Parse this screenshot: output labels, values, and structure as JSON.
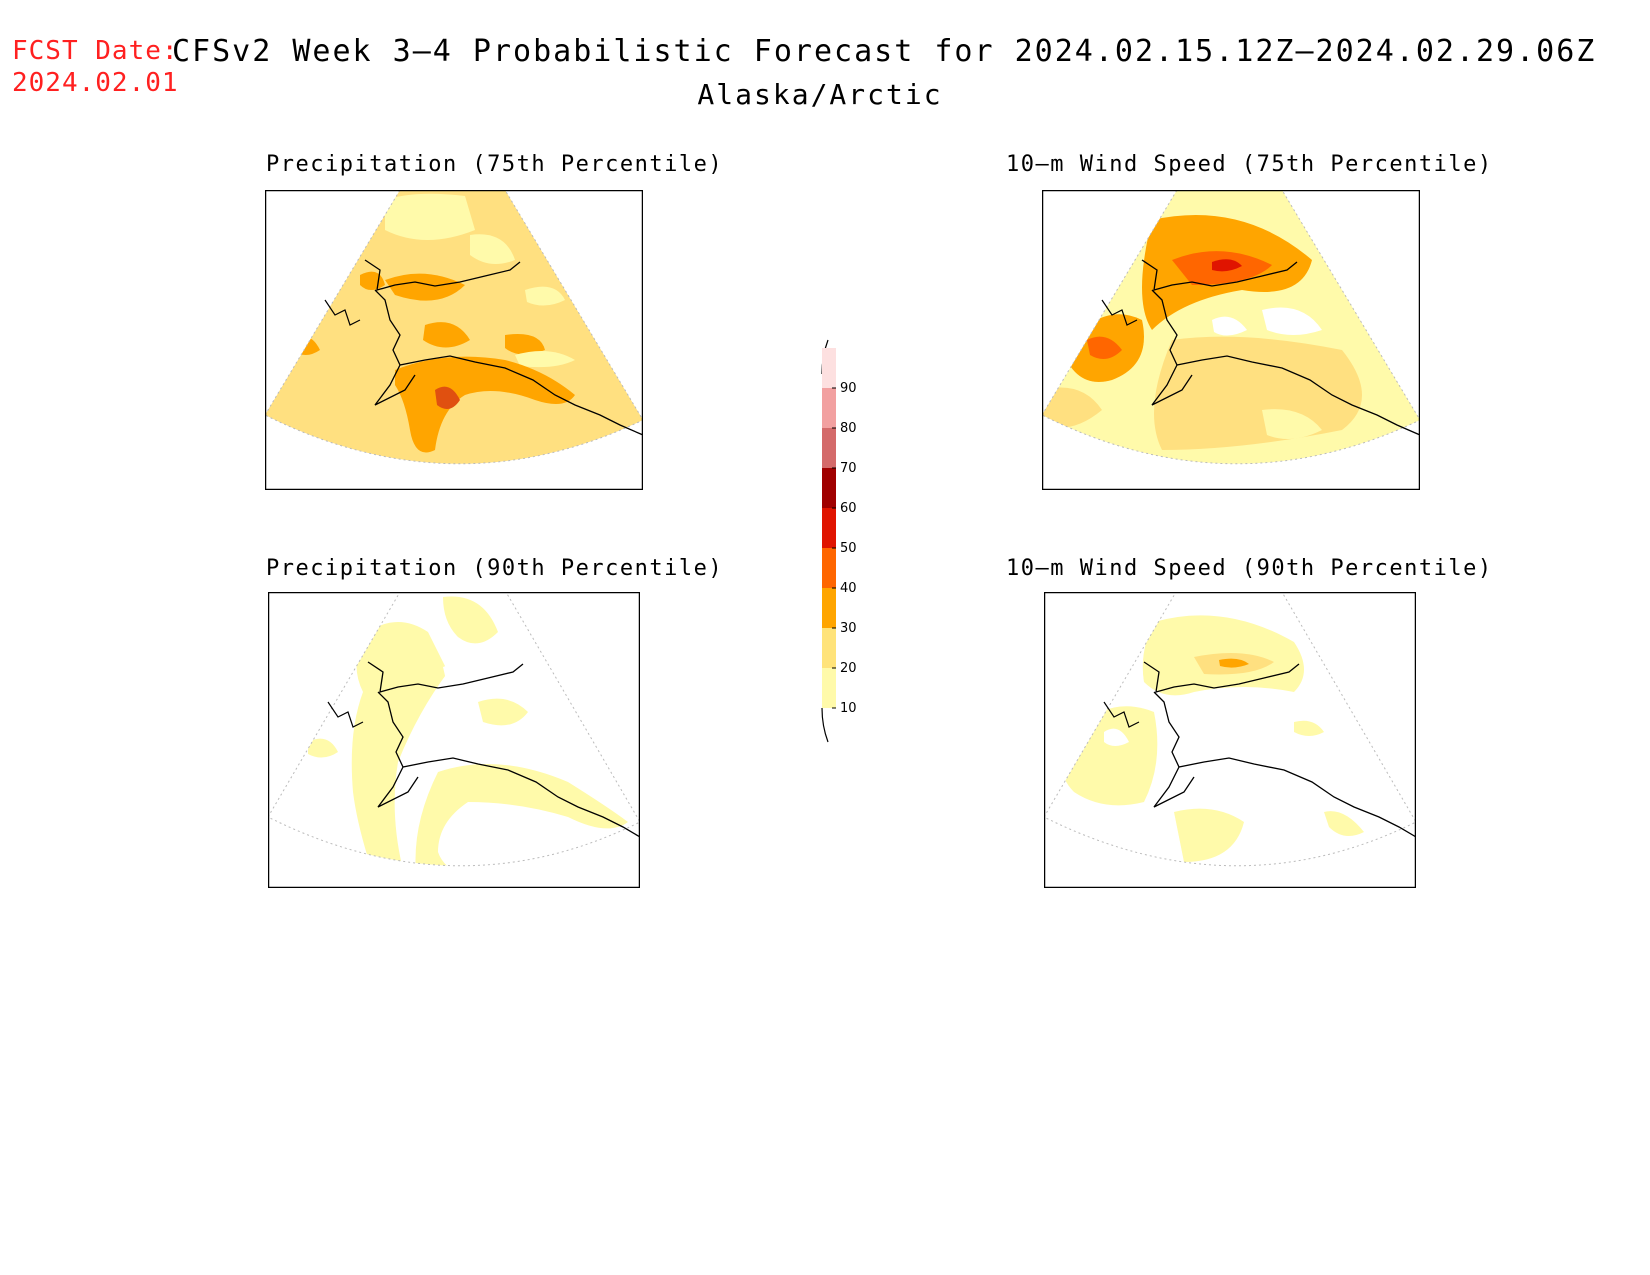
{
  "header": {
    "fcst_label": "FCST Date:",
    "fcst_date": "2024.02.01",
    "title": "CFSv2 Week 3–4 Probabilistic Forecast for 2024.02.15.12Z–2024.02.29.06Z",
    "subtitle": "Alaska/Arctic"
  },
  "panels": [
    {
      "id": "precip75",
      "title": "Precipitation (75th Percentile)"
    },
    {
      "id": "wind75",
      "title": "10–m Wind Speed (75th Percentile)"
    },
    {
      "id": "precip90",
      "title": "Precipitation (90th Percentile)"
    },
    {
      "id": "wind90",
      "title": "10–m Wind Speed (90th Percentile)"
    }
  ],
  "colorbar": {
    "levels": [
      "10",
      "20",
      "30",
      "40",
      "50",
      "60",
      "70",
      "80",
      "90"
    ],
    "colors": [
      "#fffaaa",
      "#ffe37a",
      "#ffa500",
      "#ff6600",
      "#e01400",
      "#a00000",
      "#d46a6a",
      "#f2a0a0",
      "#fde0e0"
    ]
  },
  "colors": {
    "fcst_label": "#ff2020",
    "base_precip75": "#ffe080",
    "no_signal": "#ffffff"
  }
}
